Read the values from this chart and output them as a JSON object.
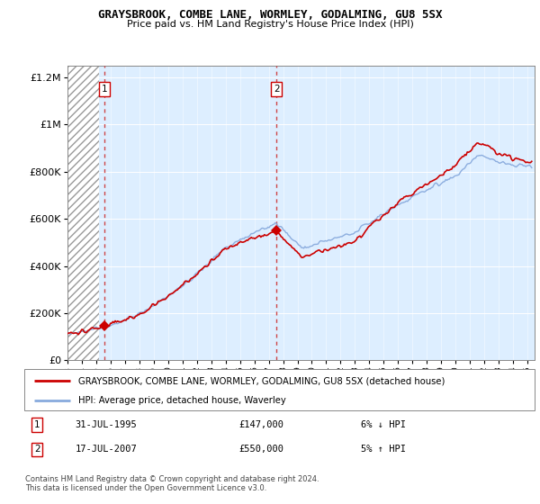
{
  "title": "GRAYSBROOK, COMBE LANE, WORMLEY, GODALMING, GU8 5SX",
  "subtitle": "Price paid vs. HM Land Registry's House Price Index (HPI)",
  "legend_line1": "GRAYSBROOK, COMBE LANE, WORMLEY, GODALMING, GU8 5SX (detached house)",
  "legend_line2": "HPI: Average price, detached house, Waverley",
  "annotation1_label": "1",
  "annotation1_date": "31-JUL-1995",
  "annotation1_price": "£147,000",
  "annotation1_hpi": "6% ↓ HPI",
  "annotation2_label": "2",
  "annotation2_date": "17-JUL-2007",
  "annotation2_price": "£550,000",
  "annotation2_hpi": "5% ↑ HPI",
  "footer": "Contains HM Land Registry data © Crown copyright and database right 2024.\nThis data is licensed under the Open Government Licence v3.0.",
  "sale1_year": 1995.58,
  "sale1_price": 147000,
  "sale2_year": 2007.54,
  "sale2_price": 550000,
  "sale_color": "#cc0000",
  "hpi_color": "#88aadd",
  "dashed_line_color": "#cc3333",
  "plot_bg": "#ddeeff",
  "hatch_end": 1995.2,
  "ylim_max": 1250000,
  "xlim_start": 1993.0,
  "xlim_end": 2025.5,
  "ytick_interval": 200000,
  "noise_seed": 17
}
